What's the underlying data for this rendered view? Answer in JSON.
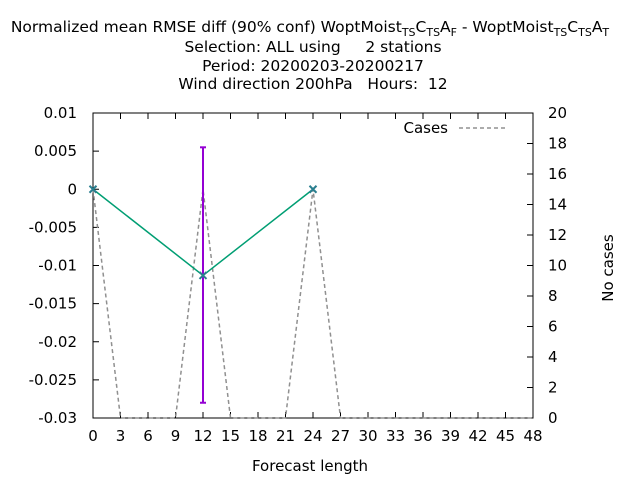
{
  "chart_data": {
    "type": "line",
    "title": {
      "line1": {
        "lead": "Normalized mean RMSE diff (90% conf) WoptMoist",
        "sub1": "TS",
        "mid1": "C",
        "sub2": "TS",
        "mid2": "A",
        "sub3": "F",
        "sep": " - WoptMoist",
        "sub4": "TS",
        "mid3": "C",
        "sub5": "TS",
        "mid4": "A",
        "sub6": "T"
      },
      "line2": "Selection: ALL using     2 stations",
      "line3": "Period: 20200203-20200217",
      "line4": "Wind direction 200hPa   Hours:  12"
    },
    "xlabel": "Forecast length",
    "ylabel": "",
    "y2label": "No cases",
    "xlim": [
      0,
      48
    ],
    "ylim": [
      -0.03,
      0.01
    ],
    "y2lim": [
      0,
      20
    ],
    "x_ticks": [
      "0",
      "3",
      "6",
      "9",
      "12",
      "15",
      "18",
      "21",
      "24",
      "27",
      "30",
      "33",
      "36",
      "39",
      "42",
      "45",
      "48"
    ],
    "y_ticks": [
      "0.01",
      "0.005",
      "0",
      "-0.005",
      "-0.01",
      "-0.015",
      "-0.02",
      "-0.025",
      "-0.03"
    ],
    "y2_ticks": [
      "20",
      "18",
      "16",
      "14",
      "12",
      "10",
      "8",
      "6",
      "4",
      "2",
      "0"
    ],
    "legend": {
      "position": "top-right",
      "entries": [
        "Cases"
      ]
    },
    "grid": false,
    "diff_series": {
      "x": [
        0,
        12,
        24
      ],
      "y": [
        0,
        -0.0113,
        0
      ],
      "color": "#009e73"
    },
    "error_bars": [
      {
        "x": 12,
        "low": -0.028,
        "high": 0.0055
      }
    ],
    "error_bar_color": "#9400d3",
    "cases_series": {
      "name": "Cases",
      "x": [
        0,
        3,
        9,
        12,
        15,
        21,
        24,
        27,
        48
      ],
      "y": [
        15,
        0,
        0,
        15,
        0,
        0,
        15,
        0,
        0
      ],
      "color": "#909090"
    }
  }
}
